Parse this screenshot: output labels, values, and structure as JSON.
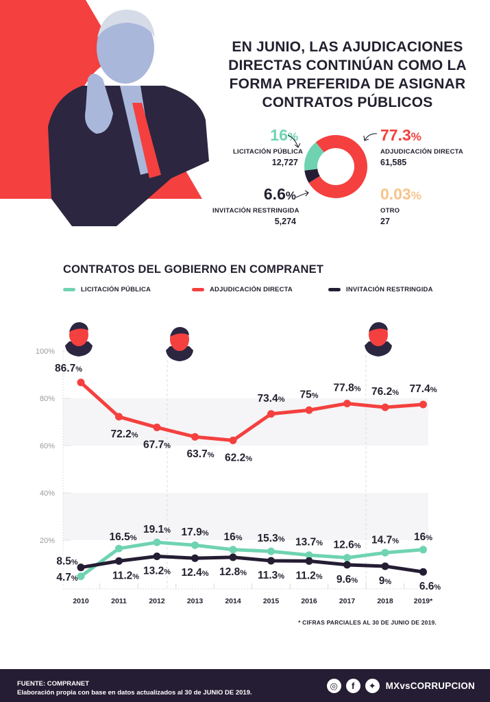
{
  "colors": {
    "licitacion": "#6fd3b1",
    "adjudicacion": "#f4403f",
    "invitacion": "#241d33",
    "otro": "#f7c48a",
    "dark": "#24202f",
    "band": "#f5f4f6",
    "axis": "#9a98a0"
  },
  "hero": {
    "title": "EN JUNIO, LAS AJUDICACIONES DIRECTAS CONTINÚAN COMO LA FORMA PREFERIDA DE ASIGNAR CONTRATOS PÚBLICOS",
    "photo_icon": "president-portrait-icon"
  },
  "summary": {
    "licitacion": {
      "pct": "16",
      "label": "LICITACIÓN PÚBLICA",
      "count": "12,727"
    },
    "adjudicacion": {
      "pct": "77.3",
      "label": "ADJUDICACIÓN DIRECTA",
      "count": "61,585"
    },
    "invitacion": {
      "pct": "6.6",
      "label": "INVITACIÓN RESTRINGIDA",
      "count": "5,274"
    },
    "otro": {
      "pct": "0.03",
      "label": "OTRO",
      "count": "27"
    },
    "pct_sign": "%"
  },
  "chart_data": [
    {
      "type": "pie",
      "title": "Contratos en junio 2019",
      "categories": [
        "Licitación pública",
        "Adjudicación directa",
        "Invitación restringida",
        "Otro"
      ],
      "values": [
        16,
        77.3,
        6.6,
        0.03
      ],
      "counts": [
        12727,
        61585,
        5274,
        27
      ],
      "donut": true
    },
    {
      "type": "line",
      "title": "CONTRATOS DEL GOBIERNO EN COMPRANET",
      "xlabel": "",
      "ylabel": "",
      "x": [
        "2010",
        "2011",
        "2012",
        "2013",
        "2014",
        "2015",
        "2016",
        "2017",
        "2018",
        "2019*"
      ],
      "ylim": [
        0,
        100
      ],
      "yticks": [
        "20%",
        "40%",
        "60%",
        "80%",
        "100%"
      ],
      "ytick_values": [
        20,
        40,
        60,
        80,
        100
      ],
      "legend_position": "top",
      "series": [
        {
          "name": "LICITACIÓN PÚBLICA",
          "key": "licitacion",
          "values": [
            4.7,
            16.5,
            19.1,
            17.9,
            16,
            15.3,
            13.7,
            12.6,
            14.7,
            16
          ],
          "labels": [
            "4.7",
            "16.5",
            "19.1",
            "17.9",
            "16",
            "15.3",
            "13.7",
            "12.6",
            "14.7",
            "16"
          ]
        },
        {
          "name": "ADJUDICACIÓN DIRECTA",
          "key": "adjudicacion",
          "values": [
            86.7,
            72.2,
            67.7,
            63.7,
            62.2,
            73.4,
            75,
            77.8,
            76.2,
            77.4
          ],
          "labels": [
            "86.7",
            "72.2",
            "67.7",
            "63.7",
            "62.2",
            "73.4",
            "75",
            "77.8",
            "76.2",
            "77.4"
          ]
        },
        {
          "name": "INVITACIÓN RESTRINGIDA",
          "key": "invitacion",
          "values": [
            8.5,
            11.2,
            13.2,
            12.4,
            12.8,
            11.3,
            11.2,
            9.6,
            9,
            6.6
          ],
          "labels": [
            "8.5",
            "11.2",
            "13.2",
            "12.4",
            "12.8",
            "11.3",
            "11.2",
            "9.6",
            "9",
            "6.6"
          ]
        }
      ],
      "annotations": [
        {
          "year": "2010",
          "icon": "president-calderon-portrait-icon"
        },
        {
          "year": "2012",
          "icon": "president-pena-nieto-portrait-icon"
        },
        {
          "year": "2018",
          "icon": "president-lopez-obrador-portrait-icon"
        }
      ]
    }
  ],
  "chart": {
    "title": "CONTRATOS DEL GOBIERNO EN COMPRANET",
    "legend": [
      {
        "label": "LICITACIÓN PÚBLICA",
        "key": "licitacion"
      },
      {
        "label": "ADJUDICACIÓN DIRECTA",
        "key": "adjudicacion"
      },
      {
        "label": "INVITACIÓN RESTRINGIDA",
        "key": "invitacion"
      }
    ],
    "footnote": "* CIFRAS PARCIALES AL 30 DE JUNIO DE 2019."
  },
  "footer": {
    "source": "FUENTE: COMPRANET",
    "note": "Elaboración propia con base en datos actualizados al 30 de JUNIO DE 2019.",
    "brand": "MXvsCORRUPCION",
    "social": [
      {
        "icon": "web-chat-icon",
        "glyph": "◎"
      },
      {
        "icon": "facebook-icon",
        "glyph": "f"
      },
      {
        "icon": "twitter-icon",
        "glyph": "✦"
      }
    ]
  }
}
